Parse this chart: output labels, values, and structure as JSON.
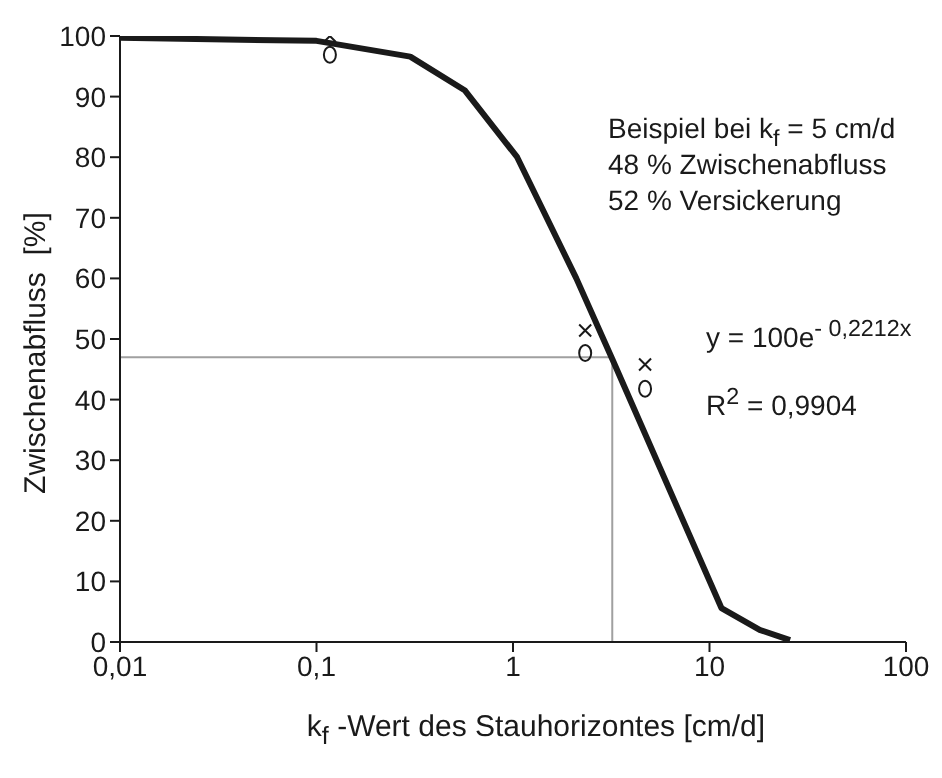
{
  "chart_data": {
    "type": "line",
    "xlabel": "k$_{f}$ -Wert des Stauhorizontes [cm/d]",
    "ylabel": "Zwischenabfluss  [%]",
    "annotations": [
      "Beispiel bei k$_{f}$ = 5 cm/d",
      "48 % Zwischenabfluss",
      "52 % Versickerung",
      "y = 100e$^{- 0,2212x}$",
      "R$^{2}$ = 0,9904"
    ],
    "log": "x",
    "xlim": [
      0.01,
      100
    ],
    "xticks": [
      {
        "value": 0.01,
        "label": "0,01"
      },
      {
        "value": 0.1,
        "label": "0,1"
      },
      1,
      10,
      100
    ],
    "ylim": [
      0,
      100
    ],
    "yticks": [
      0,
      10,
      20,
      30,
      40,
      50,
      60,
      70,
      80,
      90,
      100
    ],
    "series": [
      {
        "color": "#a0a0a0",
        "x": [
          0.01,
          3.2,
          3.2
        ],
        "values": [
          47,
          47,
          0
        ]
      },
      {
        "color": "#1a1a1a",
        "x": [
          0.01,
          0.1,
          0.3,
          0.57,
          1.05,
          2.1,
          3.2,
          11.5,
          18,
          25.7
        ],
        "values": [
          99.7,
          99.2,
          96.6,
          91,
          80,
          60,
          46.7,
          5.6,
          2,
          0.3
        ]
      },
      {
        "type": "scatter",
        "color": "#1a1a1a",
        "marker": "cross",
        "x": [
          0.117,
          2.33,
          4.7
        ],
        "values": [
          100,
          51.4,
          45.8
        ]
      },
      {
        "type": "scatter",
        "color": "#1a1a1a",
        "marker": "circle",
        "x": [
          0.117,
          2.33,
          4.7
        ],
        "values": [
          96.9,
          47.7,
          41.8
        ]
      }
    ]
  }
}
